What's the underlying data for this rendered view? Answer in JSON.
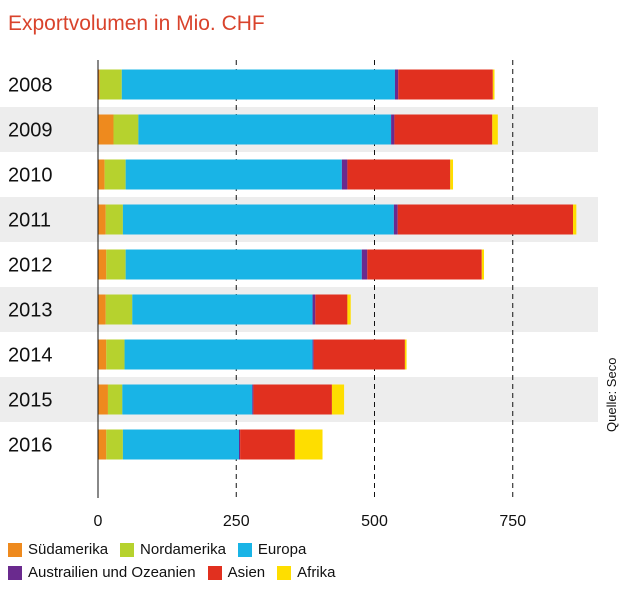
{
  "chart_data": {
    "type": "bar",
    "orientation": "horizontal",
    "stacked": true,
    "title": "Exportvolumen in Mio. CHF",
    "categories": [
      "2008",
      "2009",
      "2010",
      "2011",
      "2012",
      "2013",
      "2014",
      "2015",
      "2016"
    ],
    "xlim": [
      0,
      900
    ],
    "xticks": [
      0,
      250,
      500,
      750
    ],
    "series": [
      {
        "name": "Südamerika",
        "color": "#ee8a1e",
        "values": [
          3,
          28,
          12,
          14,
          15,
          14,
          15,
          18,
          15
        ]
      },
      {
        "name": "Nordamerika",
        "color": "#b6d22e",
        "values": [
          40,
          45,
          38,
          31,
          35,
          48,
          33,
          26,
          30
        ]
      },
      {
        "name": "Europa",
        "color": "#19b4e6",
        "values": [
          494,
          457,
          391,
          490,
          427,
          326,
          340,
          235,
          210
        ]
      },
      {
        "name": "Austrailien und Ozeanien",
        "color": "#6a2a8e",
        "values": [
          6,
          6,
          10,
          7,
          10,
          5,
          2,
          2,
          2
        ]
      },
      {
        "name": "Asien",
        "color": "#e1301f",
        "values": [
          171,
          177,
          186,
          317,
          207,
          58,
          165,
          142,
          99
        ]
      },
      {
        "name": "Afrika",
        "color": "#fede00",
        "values": [
          3,
          10,
          5,
          6,
          4,
          6,
          3,
          22,
          50
        ]
      }
    ],
    "source": "Quelle: Seco"
  }
}
